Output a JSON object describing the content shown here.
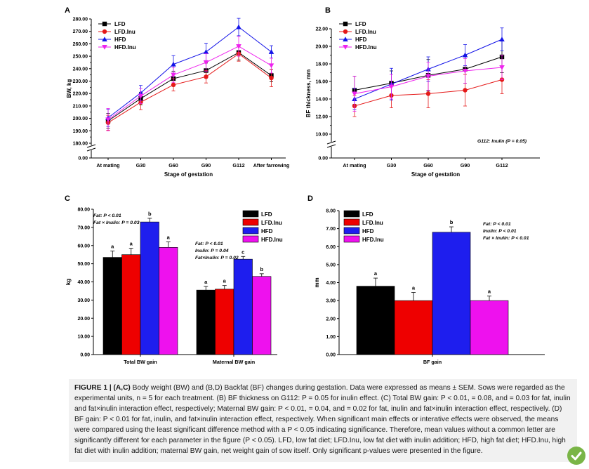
{
  "panels": {
    "A": {
      "letter": "A",
      "chart_data": {
        "type": "line",
        "x": [
          "At mating",
          "G30",
          "G60",
          "G90",
          "G112",
          "After farrowing"
        ],
        "xlabel": "Stage of gestation",
        "ylabel": "BW, kg",
        "ylim": [
          180,
          280
        ],
        "yticks": [
          "0.00",
          "180.00",
          "190.00",
          "200.00",
          "210.00",
          "220.00",
          "230.00",
          "240.00",
          "250.00",
          "260.00",
          "270.00",
          "280.00"
        ],
        "axis_break": true,
        "legend_position": "top-left",
        "series": [
          {
            "name": "LFD",
            "color": "#000000",
            "marker": "square",
            "values": [
              198,
              216,
              232,
              238.5,
              253,
              234.5
            ],
            "errors": [
              6,
              5,
              6,
              6,
              6,
              5
            ]
          },
          {
            "name": "LFD.Inu",
            "color": "#e51919",
            "marker": "circle",
            "values": [
              196.5,
              213,
              227,
              233.5,
              252,
              232.5
            ],
            "errors": [
              6,
              6,
              5,
              5,
              6,
              7
            ]
          },
          {
            "name": "HFD",
            "color": "#1414e8",
            "marker": "triangle-up",
            "values": [
              200.5,
              220.5,
              243.5,
              253.5,
              273.5,
              253.5
            ],
            "errors": [
              7,
              6,
              7,
              7,
              7,
              5
            ]
          },
          {
            "name": "HFD.Inu",
            "color": "#ee22ee",
            "marker": "triangle-down",
            "values": [
              199,
              218,
              235,
              245,
              258,
              242.5
            ],
            "errors": [
              9,
              6,
              6,
              7,
              8,
              6
            ]
          }
        ]
      }
    },
    "B": {
      "letter": "B",
      "annotation": "G112: Inulin (P = 0.05)",
      "chart_data": {
        "type": "line",
        "x": [
          "At mating",
          "G30",
          "G60",
          "G90",
          "G112"
        ],
        "xlabel": "Stage of gestation",
        "ylabel": "BF thickness, mm",
        "ylim": [
          10,
          22
        ],
        "yticks": [
          "0.00",
          "10.00",
          "12.00",
          "14.00",
          "16.00",
          "18.00",
          "20.00",
          "22.00"
        ],
        "axis_break": true,
        "legend_position": "top-left",
        "series": [
          {
            "name": "LFD",
            "color": "#000000",
            "marker": "square",
            "values": [
              15.0,
              15.8,
              16.7,
              17.4,
              18.8
            ],
            "errors": [
              1.6,
              1.4,
              1.8,
              1.6,
              1.8
            ]
          },
          {
            "name": "LFD.Inu",
            "color": "#e51919",
            "marker": "circle",
            "values": [
              13.2,
              14.4,
              14.6,
              15.0,
              16.2
            ],
            "errors": [
              1.2,
              1.4,
              1.6,
              1.8,
              1.6
            ]
          },
          {
            "name": "HFD",
            "color": "#1414e8",
            "marker": "triangle-up",
            "values": [
              14.0,
              15.7,
              17.4,
              19.0,
              20.8
            ],
            "errors": [
              1.2,
              1.8,
              1.4,
              1.2,
              1.3
            ]
          },
          {
            "name": "HFD.Inu",
            "color": "#ee22ee",
            "marker": "triangle-down",
            "values": [
              14.6,
              15.4,
              16.6,
              17.2,
              17.6
            ],
            "errors": [
              2.0,
              1.4,
              1.6,
              1.4,
              1.4
            ]
          }
        ]
      }
    },
    "C": {
      "letter": "C",
      "chart_data": {
        "type": "bar",
        "categories": [
          "Total BW gain",
          "Maternal BW gain"
        ],
        "ylabel": "kg",
        "ylim": [
          0,
          80
        ],
        "yticks": [
          "0.00",
          "10.00",
          "20.00",
          "30.00",
          "40.00",
          "50.00",
          "60.00",
          "70.00",
          "80.00"
        ],
        "legend_position": "top-right",
        "series": [
          {
            "name": "LFD",
            "color": "#000000",
            "values": [
              53.5,
              35.5
            ],
            "errors": [
              3.5,
              2
            ],
            "letters": [
              "a",
              "a"
            ]
          },
          {
            "name": "LFD.Inu",
            "color": "#ee0000",
            "values": [
              55,
              36
            ],
            "errors": [
              3.5,
              2
            ],
            "letters": [
              "a",
              "a"
            ]
          },
          {
            "name": "HFD",
            "color": "#1e1eee",
            "values": [
              73,
              52.5
            ],
            "errors": [
              2,
              1.5
            ],
            "letters": [
              "b",
              "c"
            ]
          },
          {
            "name": "HFD.Inu",
            "color": "#ee11ee",
            "values": [
              59,
              43
            ],
            "errors": [
              3,
              1.5
            ],
            "letters": [
              "a",
              "b"
            ]
          }
        ],
        "annotations": [
          {
            "group": 0,
            "lines": [
              "Fat: P < 0.01",
              "Fat × Inulin: P = 0.03"
            ]
          },
          {
            "group": 1,
            "lines": [
              "Fat: P < 0.01",
              "Inulin: P = 0.04",
              "Fat×Inulin: P = 0.02"
            ]
          }
        ]
      }
    },
    "D": {
      "letter": "D",
      "chart_data": {
        "type": "bar",
        "categories": [
          "BF gain"
        ],
        "ylabel": "mm",
        "ylim": [
          0,
          8
        ],
        "yticks": [
          "0.00",
          "1.00",
          "2.00",
          "3.00",
          "4.00",
          "5.00",
          "6.00",
          "7.00",
          "8.00"
        ],
        "legend_position": "top-left",
        "series": [
          {
            "name": "LFD",
            "color": "#000000",
            "values": [
              3.8
            ],
            "errors": [
              0.45
            ],
            "letters": [
              "a"
            ]
          },
          {
            "name": "LFD.Inu",
            "color": "#ee0000",
            "values": [
              3.0
            ],
            "errors": [
              0.45
            ],
            "letters": [
              "a"
            ]
          },
          {
            "name": "HFD",
            "color": "#1e1eee",
            "values": [
              6.8
            ],
            "errors": [
              0.3
            ],
            "letters": [
              "b"
            ]
          },
          {
            "name": "HFD.Inu",
            "color": "#ee11ee",
            "values": [
              3.0
            ],
            "errors": [
              0.25
            ],
            "letters": [
              "a"
            ]
          }
        ],
        "annotations": [
          {
            "group": 0,
            "lines": [
              "Fat: P < 0.01",
              "Inulin: P < 0.01",
              "Fat × Inulin: P < 0.01"
            ]
          }
        ]
      }
    }
  },
  "caption": {
    "heading": "FIGURE 1 | (A,C)",
    "body": "Body weight (BW) and (B,D) Backfat (BF) changes during gestation. Data were expressed as means ± SEM. Sows were regarded as the experimental units, n = 5 for each treatment. (B) BF thickness on G112: P = 0.05 for inulin effect. (C) Total BW gain: P < 0.01, = 0.08, and = 0.03 for fat, inulin and fat×inulin interaction effect, respectively; Maternal BW gain: P < 0.01, = 0.04, and = 0.02 for fat, inulin and fat×inulin interaction effect, respectively. (D) BF gain: P < 0.01 for fat, inulin, and fat×inulin interaction effect, respectively. When significant main effects or interative effects were observed, the means were compared using the least significant difference method with a P < 0.05 indicating significance. Therefore, mean values without a common letter are significantly different for each parameter in the figure (P < 0.05). LFD, low fat diet; LFD.Inu, low fat diet with inulin addition; HFD, high fat diet; HFD.Inu, high fat diet with inulin addition; maternal BW gain, net weight gain of sow itself. Only significant p-values were presented in the figure."
  },
  "badge_icon": "check-shield-icon"
}
